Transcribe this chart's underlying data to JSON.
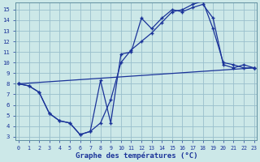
{
  "title": "Graphe des températures (°C)",
  "bg_color": "#cce8e8",
  "grid_color": "#99bfcc",
  "line_color": "#1a3399",
  "xlim": [
    -0.3,
    23.3
  ],
  "ylim": [
    2.7,
    15.7
  ],
  "xtick_vals": [
    0,
    1,
    2,
    3,
    4,
    5,
    6,
    7,
    8,
    9,
    10,
    11,
    12,
    13,
    14,
    15,
    16,
    17,
    18,
    19,
    20,
    21,
    22,
    23
  ],
  "ytick_vals": [
    3,
    4,
    5,
    6,
    7,
    8,
    9,
    10,
    11,
    12,
    13,
    14,
    15
  ],
  "curve1_x": [
    0,
    1,
    2,
    3,
    4,
    5,
    6,
    7,
    8,
    9,
    10,
    11,
    12,
    13,
    14,
    15,
    16,
    17,
    18,
    19,
    20,
    21,
    22,
    23
  ],
  "curve1_y": [
    8.0,
    7.8,
    7.2,
    5.2,
    4.5,
    4.3,
    3.2,
    3.5,
    8.3,
    4.3,
    10.8,
    11.0,
    14.2,
    13.2,
    14.2,
    15.0,
    14.8,
    15.2,
    15.5,
    14.2,
    9.8,
    9.5,
    9.8,
    9.5
  ],
  "curve2_x": [
    0,
    1,
    2,
    3,
    4,
    5,
    6,
    7,
    8,
    9,
    10,
    11,
    12,
    13,
    14,
    15,
    16,
    17,
    18,
    19,
    20,
    21,
    22,
    23
  ],
  "curve2_y": [
    8.0,
    7.8,
    7.2,
    5.2,
    4.5,
    4.3,
    3.2,
    3.5,
    4.3,
    6.5,
    10.0,
    11.2,
    12.0,
    12.8,
    13.8,
    14.8,
    15.0,
    15.5,
    15.8,
    13.2,
    10.0,
    9.8,
    9.5,
    9.5
  ],
  "curve3_x": [
    0,
    23
  ],
  "curve3_y": [
    8.0,
    9.5
  ],
  "curve3_mid_x": [
    9
  ],
  "curve3_mid_y": [
    7.5
  ]
}
